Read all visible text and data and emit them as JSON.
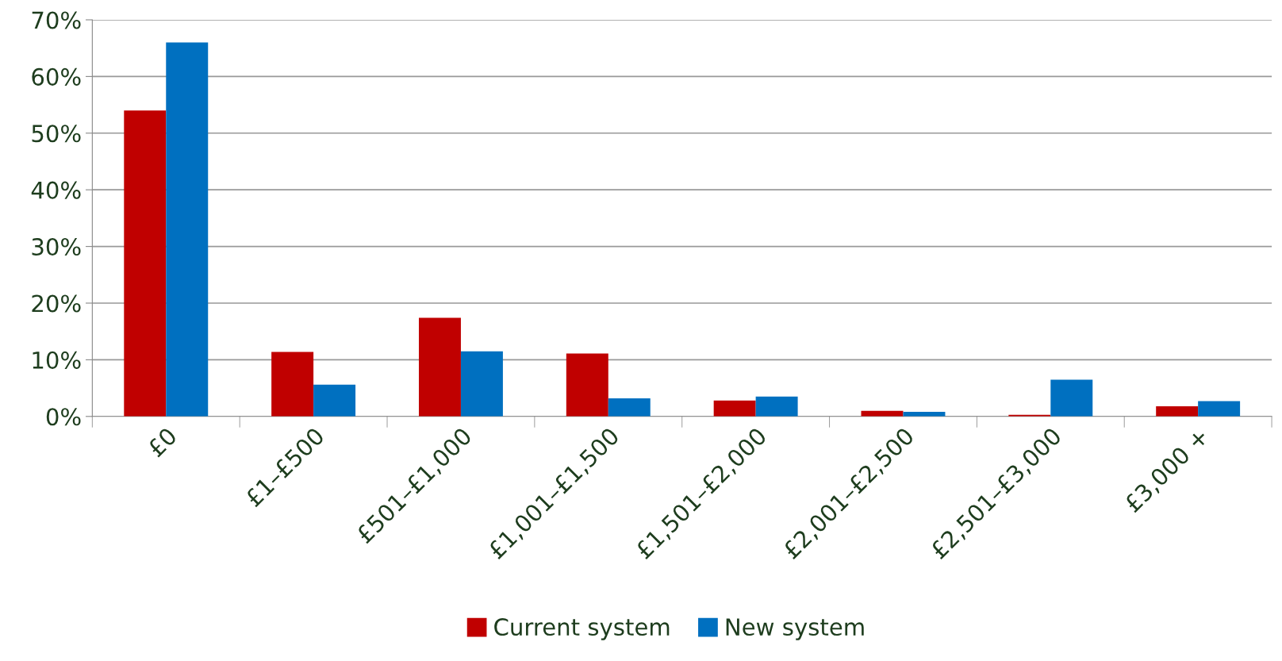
{
  "chart_data": {
    "type": "bar",
    "categories": [
      "£0",
      "£1–£500",
      "£501–£1,000",
      "£1,001–£1,500",
      "£1,501–£2,000",
      "£2,001–£2,500",
      "£2,501–£3,000",
      "£3,000 +"
    ],
    "series": [
      {
        "name": "Current system",
        "color": "#c00000",
        "values": [
          54,
          11.4,
          17.4,
          11.1,
          2.8,
          1.0,
          0.3,
          1.8
        ]
      },
      {
        "name": "New system",
        "color": "#0070c0",
        "values": [
          66,
          5.6,
          11.5,
          3.2,
          3.5,
          0.8,
          6.5,
          2.7
        ]
      }
    ],
    "ylim": [
      0,
      70
    ],
    "yticks": [
      {
        "value": 0,
        "label": "0%"
      },
      {
        "value": 10,
        "label": "10%"
      },
      {
        "value": 20,
        "label": "20%"
      },
      {
        "value": 30,
        "label": "30%"
      },
      {
        "value": 40,
        "label": "40%"
      },
      {
        "value": 50,
        "label": "50%"
      },
      {
        "value": 60,
        "label": "60%"
      },
      {
        "value": 70,
        "label": "70%"
      }
    ],
    "grid": "y",
    "legend": "bottom"
  }
}
